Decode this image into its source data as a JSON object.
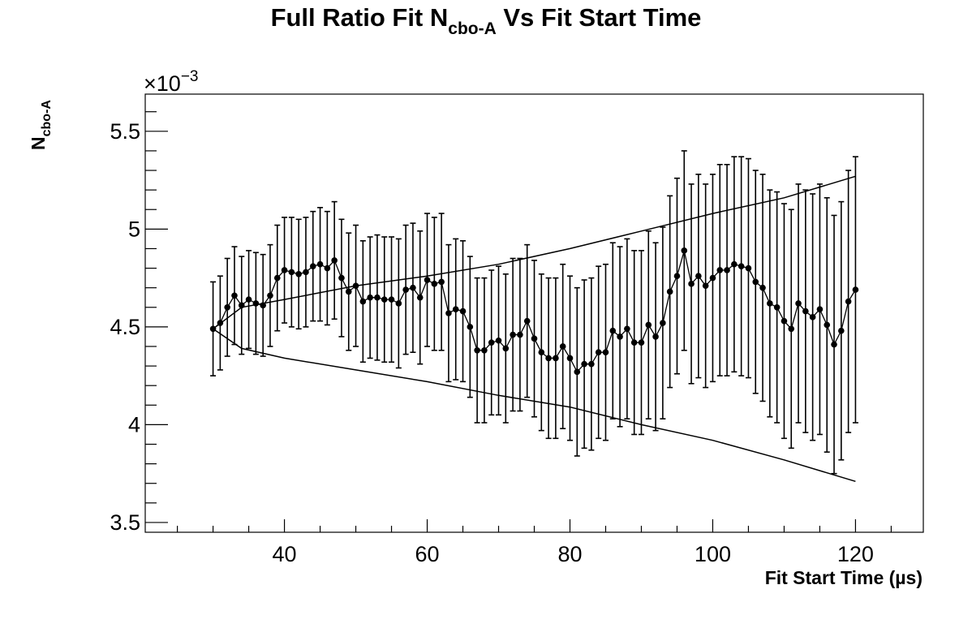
{
  "chart_data": {
    "type": "scatter",
    "title": {
      "main": "Full Ratio Fit N",
      "sub": "cbo-A",
      "rest": " Vs Fit Start Time"
    },
    "xlabel": "Fit Start Time (µs)",
    "ylabel": {
      "main": "N",
      "sub": "cbo-A"
    },
    "y_multiplier": {
      "prefix": "×10",
      "exponent": "−3"
    },
    "xlim": [
      20.5,
      129.5
    ],
    "ylim": [
      3.45,
      5.69
    ],
    "x_ticks": [
      40,
      60,
      80,
      100,
      120
    ],
    "y_ticks": [
      3.5,
      4,
      4.5,
      5,
      5.5
    ],
    "x_tick_labels": [
      "40",
      "60",
      "80",
      "100",
      "120"
    ],
    "y_tick_labels": [
      "3.5",
      "4",
      "4.5",
      "5",
      "5.5"
    ],
    "grid": false,
    "colors": {
      "marker": "#000000",
      "line": "#000000",
      "axes": "#000000"
    },
    "series": [
      {
        "type": "points_with_errors",
        "x": [
          30,
          31,
          32,
          33,
          34,
          35,
          36,
          37,
          38,
          39,
          40,
          41,
          42,
          43,
          44,
          45,
          46,
          47,
          48,
          49,
          50,
          51,
          52,
          53,
          54,
          55,
          56,
          57,
          58,
          59,
          60,
          61,
          62,
          63,
          64,
          65,
          66,
          67,
          68,
          69,
          70,
          71,
          72,
          73,
          74,
          75,
          76,
          77,
          78,
          79,
          80,
          81,
          82,
          83,
          84,
          85,
          86,
          87,
          88,
          89,
          90,
          91,
          92,
          93,
          94,
          95,
          96,
          97,
          98,
          99,
          100,
          101,
          102,
          103,
          104,
          105,
          106,
          107,
          108,
          109,
          110,
          111,
          112,
          113,
          114,
          115,
          116,
          117,
          118,
          119,
          120
        ],
        "y": [
          4.49,
          4.52,
          4.6,
          4.66,
          4.61,
          4.64,
          4.62,
          4.61,
          4.66,
          4.75,
          4.79,
          4.78,
          4.77,
          4.78,
          4.81,
          4.82,
          4.8,
          4.84,
          4.75,
          4.68,
          4.71,
          4.63,
          4.65,
          4.65,
          4.64,
          4.64,
          4.62,
          4.69,
          4.7,
          4.65,
          4.74,
          4.72,
          4.73,
          4.57,
          4.59,
          4.58,
          4.5,
          4.38,
          4.38,
          4.42,
          4.43,
          4.39,
          4.46,
          4.46,
          4.53,
          4.44,
          4.37,
          4.34,
          4.34,
          4.4,
          4.34,
          4.27,
          4.31,
          4.31,
          4.37,
          4.37,
          4.48,
          4.45,
          4.49,
          4.42,
          4.42,
          4.51,
          4.45,
          4.52,
          4.68,
          4.76,
          4.89,
          4.72,
          4.76,
          4.71,
          4.75,
          4.79,
          4.79,
          4.82,
          4.81,
          4.8,
          4.73,
          4.7,
          4.62,
          4.6,
          4.53,
          4.49,
          4.62,
          4.58,
          4.55,
          4.59,
          4.51,
          4.41,
          4.48,
          4.63,
          4.69
        ],
        "err": [
          0.24,
          0.24,
          0.25,
          0.25,
          0.25,
          0.25,
          0.26,
          0.26,
          0.26,
          0.27,
          0.27,
          0.28,
          0.28,
          0.28,
          0.28,
          0.29,
          0.29,
          0.3,
          0.3,
          0.3,
          0.31,
          0.31,
          0.31,
          0.32,
          0.32,
          0.32,
          0.33,
          0.33,
          0.33,
          0.34,
          0.34,
          0.34,
          0.35,
          0.35,
          0.36,
          0.36,
          0.36,
          0.37,
          0.37,
          0.37,
          0.38,
          0.38,
          0.39,
          0.39,
          0.39,
          0.4,
          0.4,
          0.41,
          0.41,
          0.42,
          0.42,
          0.43,
          0.43,
          0.44,
          0.44,
          0.45,
          0.45,
          0.46,
          0.46,
          0.47,
          0.47,
          0.48,
          0.48,
          0.49,
          0.49,
          0.5,
          0.51,
          0.51,
          0.52,
          0.52,
          0.53,
          0.54,
          0.54,
          0.55,
          0.56,
          0.56,
          0.57,
          0.58,
          0.58,
          0.59,
          0.6,
          0.61,
          0.61,
          0.62,
          0.63,
          0.64,
          0.65,
          0.66,
          0.66,
          0.67,
          0.68
        ]
      },
      {
        "type": "line",
        "x": [
          30,
          34,
          40,
          50,
          60,
          70,
          80,
          90,
          100,
          110,
          120
        ],
        "y": [
          4.49,
          4.6,
          4.64,
          4.71,
          4.76,
          4.82,
          4.9,
          4.99,
          5.08,
          5.16,
          5.27
        ]
      },
      {
        "type": "line",
        "x": [
          30,
          34,
          40,
          50,
          60,
          70,
          80,
          90,
          100,
          110,
          120
        ],
        "y": [
          4.49,
          4.39,
          4.34,
          4.28,
          4.22,
          4.15,
          4.09,
          4.0,
          3.92,
          3.82,
          3.71
        ]
      }
    ]
  }
}
